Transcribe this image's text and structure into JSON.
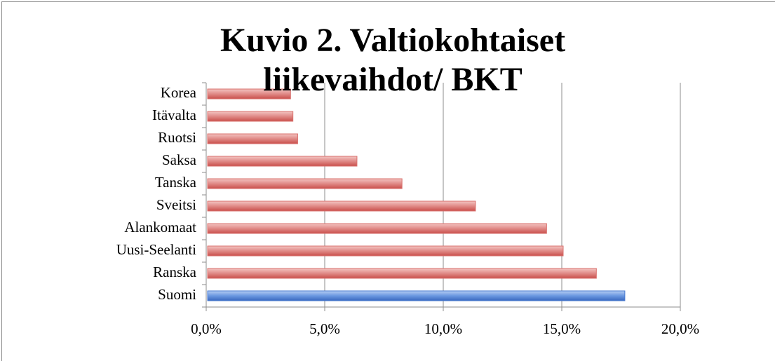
{
  "chart_data": {
    "type": "bar",
    "orientation": "horizontal",
    "title": "Kuvio 2. Valtiokohtaiset liikevaihdot/ BKT",
    "categories": [
      "Korea",
      "Itävalta",
      "Ruotsi",
      "Saksa",
      "Tanska",
      "Sveitsi",
      "Alankomaat",
      "Uusi-Seelanti",
      "Ranska",
      "Suomi"
    ],
    "values": [
      3.5,
      3.6,
      3.8,
      6.3,
      8.2,
      11.3,
      14.3,
      15.0,
      16.4,
      17.6
    ],
    "colors": [
      "#d9706d",
      "#d9706d",
      "#d9706d",
      "#d9706d",
      "#d9706d",
      "#d9706d",
      "#d9706d",
      "#d9706d",
      "#d9706d",
      "#4a7bd0"
    ],
    "xlim": [
      0,
      20
    ],
    "xticks": [
      {
        "value": 0,
        "label": "0,0%"
      },
      {
        "value": 5,
        "label": "5,0%"
      },
      {
        "value": 10,
        "label": "10,0%"
      },
      {
        "value": 15,
        "label": "15,0%"
      },
      {
        "value": 20,
        "label": "20,0%"
      }
    ],
    "grid": true
  }
}
